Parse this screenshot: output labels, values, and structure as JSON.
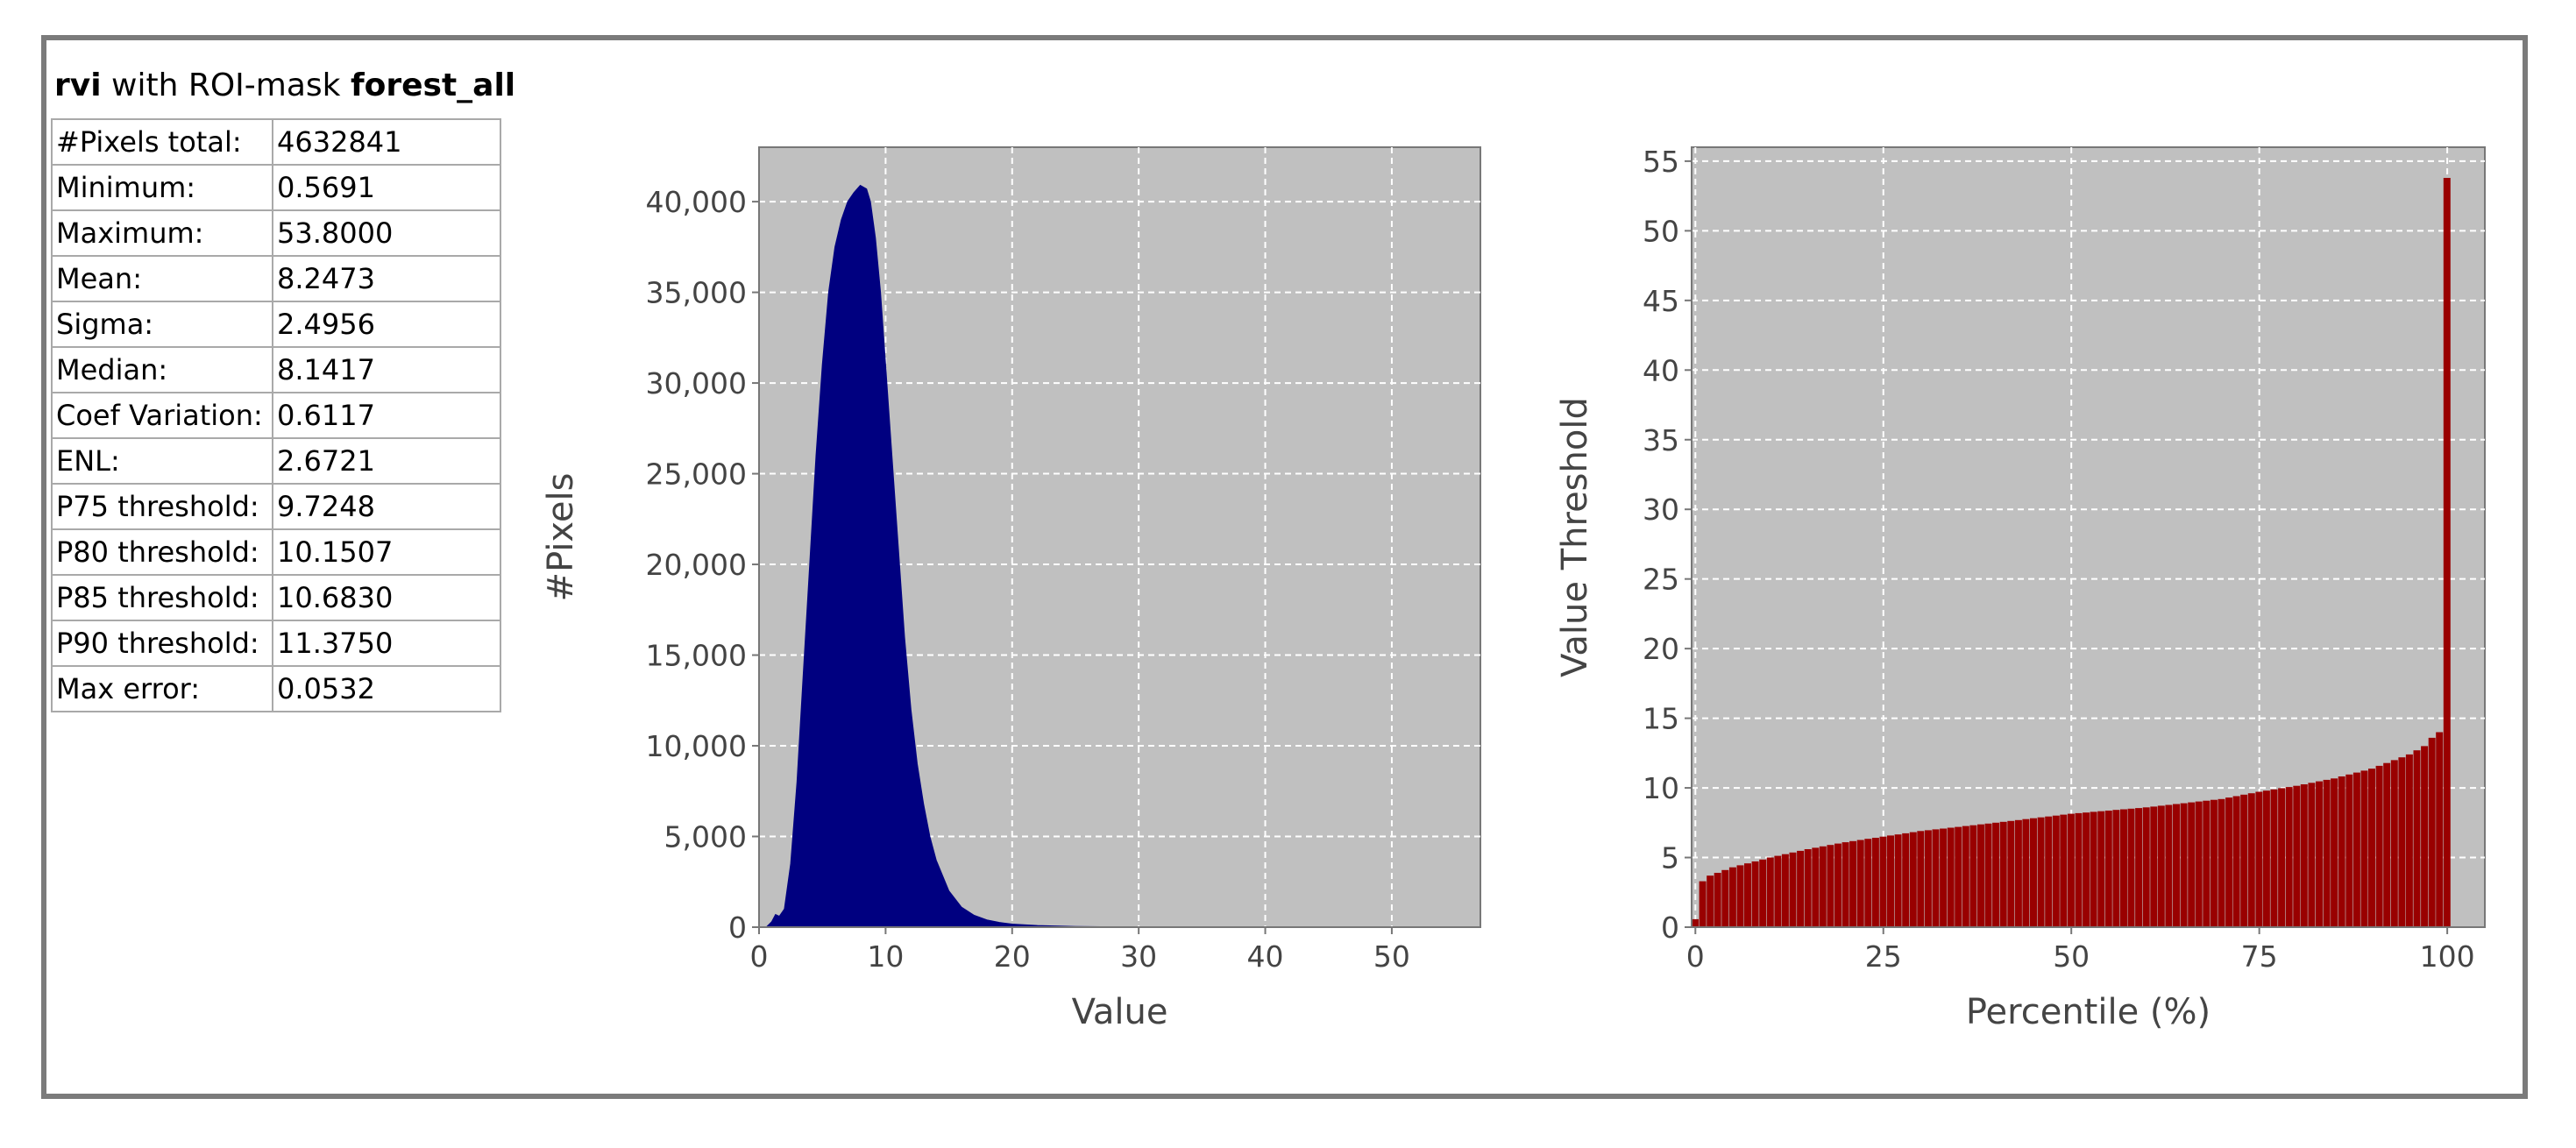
{
  "header": {
    "band": "rvi",
    "middle": " with ROI-mask ",
    "mask": "forest_all"
  },
  "stats": [
    {
      "label": "#Pixels total:",
      "value": "4632841"
    },
    {
      "label": "Minimum:",
      "value": "0.5691"
    },
    {
      "label": "Maximum:",
      "value": "53.8000"
    },
    {
      "label": "Mean:",
      "value": "8.2473"
    },
    {
      "label": "Sigma:",
      "value": "2.4956"
    },
    {
      "label": "Median:",
      "value": "8.1417"
    },
    {
      "label": "Coef Variation:",
      "value": "0.6117"
    },
    {
      "label": "ENL:",
      "value": "2.6721"
    },
    {
      "label": "P75 threshold:",
      "value": "9.7248"
    },
    {
      "label": "P80 threshold:",
      "value": "10.1507"
    },
    {
      "label": "P85 threshold:",
      "value": "10.6830"
    },
    {
      "label": "P90 threshold:",
      "value": "11.3750"
    },
    {
      "label": "Max error:",
      "value": "0.0532"
    }
  ],
  "colors": {
    "histogram": "#000080",
    "percentile": "#990000",
    "plot_bg": "#c0c0c0",
    "grid": "#ffffff"
  },
  "chart_data": [
    {
      "type": "area",
      "xlabel": "Value",
      "ylabel": "#Pixels",
      "xlim": [
        0,
        57
      ],
      "ylim": [
        0,
        43000
      ],
      "xticks": [
        0,
        10,
        20,
        30,
        40,
        50
      ],
      "xtick_labels": [
        "0",
        "10",
        "20",
        "30",
        "40",
        "50"
      ],
      "yticks": [
        0,
        5000,
        10000,
        15000,
        20000,
        25000,
        30000,
        35000,
        40000
      ],
      "ytick_labels": [
        "0",
        "5,000",
        "10,000",
        "15,000",
        "20,000",
        "25,000",
        "30,000",
        "35,000",
        "40,000"
      ],
      "grid": true,
      "x": [
        0.57,
        1.0,
        1.3,
        1.6,
        2.0,
        2.5,
        3.0,
        3.5,
        4.0,
        4.5,
        5.0,
        5.5,
        6.0,
        6.5,
        7.0,
        7.5,
        8.0,
        8.5,
        8.8,
        9.2,
        9.6,
        10.0,
        10.5,
        11.0,
        11.5,
        12.0,
        12.5,
        13.0,
        13.5,
        14.0,
        15.0,
        16.0,
        17.0,
        18.0,
        19.0,
        20.0,
        22.0,
        25.0,
        30.0,
        40.0,
        53.8
      ],
      "values": [
        0,
        300,
        700,
        600,
        1000,
        3500,
        8000,
        14000,
        20000,
        26000,
        31000,
        35000,
        37500,
        39000,
        40000,
        40500,
        40900,
        40700,
        40000,
        38000,
        35000,
        31000,
        26000,
        21000,
        16000,
        12000,
        9000,
        6800,
        5000,
        3700,
        2000,
        1100,
        650,
        400,
        260,
        170,
        90,
        40,
        10,
        0,
        0
      ]
    },
    {
      "type": "bar",
      "xlabel": "Percentile (%)",
      "ylabel": "Value Threshold",
      "xlim": [
        -0.5,
        105
      ],
      "ylim": [
        0,
        56
      ],
      "xticks": [
        0,
        25,
        50,
        75,
        100
      ],
      "xtick_labels": [
        "0",
        "25",
        "50",
        "75",
        "100"
      ],
      "yticks": [
        0,
        5,
        10,
        15,
        20,
        25,
        30,
        35,
        40,
        45,
        50,
        55
      ],
      "ytick_labels": [
        "0",
        "5",
        "10",
        "15",
        "20",
        "25",
        "30",
        "35",
        "40",
        "45",
        "50",
        "55"
      ],
      "grid": true,
      "percentiles": [
        0,
        1,
        2,
        5,
        10,
        15,
        20,
        25,
        30,
        40,
        50,
        60,
        70,
        75,
        80,
        85,
        90,
        95,
        97,
        98,
        99,
        100
      ],
      "values": [
        0.57,
        3.3,
        3.7,
        4.3,
        5.0,
        5.6,
        6.1,
        6.5,
        6.9,
        7.5,
        8.14,
        8.6,
        9.2,
        9.72,
        10.15,
        10.68,
        11.38,
        12.4,
        13.0,
        13.6,
        14.0,
        53.8
      ]
    }
  ]
}
